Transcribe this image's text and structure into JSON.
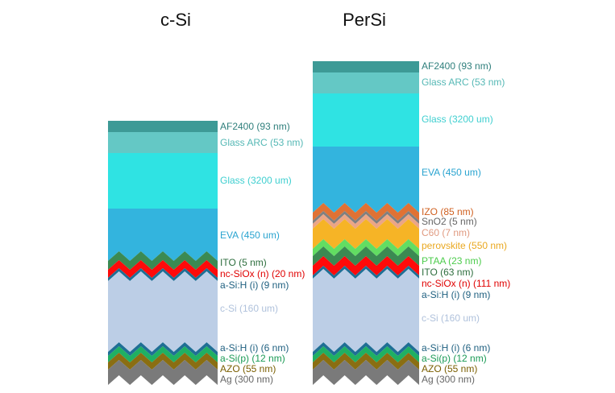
{
  "stacks": [
    {
      "title": "c-Si",
      "layers": [
        {
          "label": "AF2400 (93 nm)",
          "color": "#3d9a96",
          "text_color": "#2f7f7c"
        },
        {
          "label": "Glass ARC (53 nm)",
          "color": "#64c8c5",
          "text_color": "#55b8b5"
        },
        {
          "label": "Glass (3200 um)",
          "color": "#2fe3e3",
          "text_color": "#3fcfd0"
        },
        {
          "label": "EVA (450 um)",
          "color": "#33b4de",
          "text_color": "#2aa4d0"
        },
        {
          "label": "ITO (5 nm)",
          "color": "#3b8a52",
          "text_color": "#2e6e3e"
        },
        {
          "label": "nc-SiOx (n) (20 nm)",
          "color": "#ff0a0a",
          "text_color": "#e00000"
        },
        {
          "label": "a-Si:H (i) (9 nm)",
          "color": "#1f6f95",
          "text_color": "#1f6080"
        },
        {
          "label": "c-Si (160 um)",
          "color": "#bccee6",
          "text_color": "#b0c2dc"
        },
        {
          "label": "a-Si:H (i) (6 nm)",
          "color": "#1f6f95",
          "text_color": "#1f6080"
        },
        {
          "label": "a-Si(p) (12 nm)",
          "color": "#1fb063",
          "text_color": "#1a9a55"
        },
        {
          "label": "AZO (55 nm)",
          "color": "#8a6e12",
          "text_color": "#7a5e00"
        },
        {
          "label": "Ag (300 nm)",
          "color": "#7a7a7a",
          "text_color": "#666666"
        }
      ]
    },
    {
      "title": "PerSi",
      "layers": [
        {
          "label": "AF2400 (93 nm)",
          "color": "#3d9a96",
          "text_color": "#2f7f7c"
        },
        {
          "label": "Glass ARC (53 nm)",
          "color": "#64c8c5",
          "text_color": "#55b8b5"
        },
        {
          "label": "Glass (3200 um)",
          "color": "#2fe3e3",
          "text_color": "#3fcfd0"
        },
        {
          "label": "EVA (450 um)",
          "color": "#33b4de",
          "text_color": "#2aa4d0"
        },
        {
          "label": "IZO (85 nm)",
          "color": "#e07234",
          "text_color": "#d06020"
        },
        {
          "label": "SnO2 (5 nm)",
          "color": "#808080",
          "text_color": "#666666"
        },
        {
          "label": "C60 (7 nm)",
          "color": "#eba586",
          "text_color": "#e09a80"
        },
        {
          "label": "perovskite (550 nm)",
          "color": "#f6b426",
          "text_color": "#eaa820"
        },
        {
          "label": "PTAA (23 nm)",
          "color": "#62dd62",
          "text_color": "#4ccc4c"
        },
        {
          "label": "ITO (63 nm)",
          "color": "#3b8a52",
          "text_color": "#2e6e3e"
        },
        {
          "label": "nc-SiOx (n) (111 nm)",
          "color": "#ff0a0a",
          "text_color": "#e00000"
        },
        {
          "label": "a-Si:H (i) (9 nm)",
          "color": "#1f6f95",
          "text_color": "#1f6080"
        },
        {
          "label": "c-Si (160 um)",
          "color": "#bccee6",
          "text_color": "#b0c2dc"
        },
        {
          "label": "a-Si:H (i) (6 nm)",
          "color": "#1f6f95",
          "text_color": "#1f6080"
        },
        {
          "label": "a-Si(p) (12 nm)",
          "color": "#1fb063",
          "text_color": "#1a9a55"
        },
        {
          "label": "AZO (55 nm)",
          "color": "#8a6e12",
          "text_color": "#7a5e00"
        },
        {
          "label": "Ag (300 nm)",
          "color": "#7a7a7a",
          "text_color": "#666666"
        }
      ]
    }
  ]
}
